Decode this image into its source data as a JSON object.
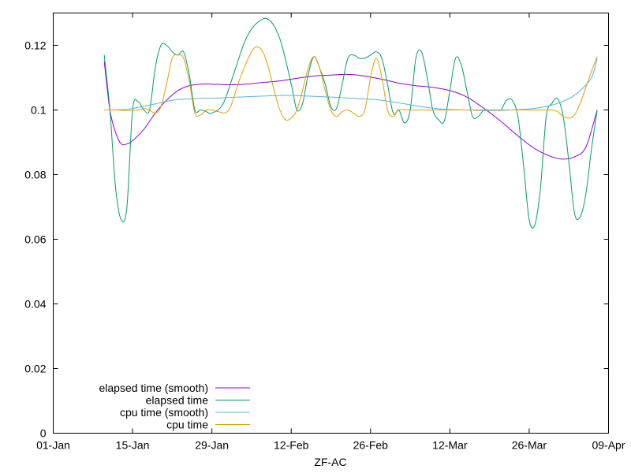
{
  "chart_data": {
    "type": "line",
    "title": "",
    "xlabel": "ZF-AC",
    "ylabel": "",
    "x_tick_labels": [
      "01-Jan",
      "15-Jan",
      "29-Jan",
      "12-Feb",
      "26-Feb",
      "12-Mar",
      "26-Mar",
      "09-Apr"
    ],
    "y_tick_labels": [
      "0",
      "0.02",
      "0.04",
      "0.06",
      "0.08",
      "0.1",
      "0.12"
    ],
    "xlim": [
      "01-Jan",
      "09-Apr"
    ],
    "ylim": [
      0,
      0.13
    ],
    "grid": false,
    "legend_position": "bottom-left",
    "series": [
      {
        "name": "elapsed time (smooth)",
        "color": "#9400d3",
        "points": [
          [
            "10-Jan",
            0.115
          ],
          [
            "11-Jan",
            0.1
          ],
          [
            "12-Jan",
            0.093
          ],
          [
            "13-Jan",
            0.0895
          ],
          [
            "14-Jan",
            0.0895
          ],
          [
            "15-Jan",
            0.0905
          ],
          [
            "17-Jan",
            0.094
          ],
          [
            "19-Jan",
            0.099
          ],
          [
            "21-Jan",
            0.103
          ],
          [
            "23-Jan",
            0.106
          ],
          [
            "25-Jan",
            0.1075
          ],
          [
            "27-Jan",
            0.108
          ],
          [
            "29-Jan",
            0.108
          ],
          [
            "01-Feb",
            0.1078
          ],
          [
            "04-Feb",
            0.108
          ],
          [
            "07-Feb",
            0.1085
          ],
          [
            "10-Feb",
            0.109
          ],
          [
            "13-Feb",
            0.1098
          ],
          [
            "16-Feb",
            0.1105
          ],
          [
            "19-Feb",
            0.1108
          ],
          [
            "22-Feb",
            0.111
          ],
          [
            "25-Feb",
            0.1105
          ],
          [
            "28-Feb",
            0.1095
          ],
          [
            "03-Mar",
            0.1083
          ],
          [
            "06-Mar",
            0.1075
          ],
          [
            "09-Mar",
            0.107
          ],
          [
            "12-Mar",
            0.106
          ],
          [
            "15-Mar",
            0.104
          ],
          [
            "18-Mar",
            0.1005
          ],
          [
            "21-Mar",
            0.0965
          ],
          [
            "24-Mar",
            0.092
          ],
          [
            "27-Mar",
            0.088
          ],
          [
            "30-Mar",
            0.0855
          ],
          [
            "01-Apr",
            0.0848
          ],
          [
            "03-Apr",
            0.0855
          ],
          [
            "05-Apr",
            0.0885
          ],
          [
            "07-Apr",
            0.1
          ]
        ]
      },
      {
        "name": "elapsed time",
        "color": "#009e73",
        "points": [
          [
            "10-Jan",
            0.117
          ],
          [
            "11-Jan",
            0.1
          ],
          [
            "12-Jan",
            0.076
          ],
          [
            "13-Jan",
            0.066
          ],
          [
            "14-Jan",
            0.07
          ],
          [
            "15-Jan",
            0.1
          ],
          [
            "16-Jan",
            0.1025
          ],
          [
            "17-Jan",
            0.1
          ],
          [
            "18-Jan",
            0.1
          ],
          [
            "19-Jan",
            0.113
          ],
          [
            "20-Jan",
            0.12
          ],
          [
            "21-Jan",
            0.12
          ],
          [
            "22-Jan",
            0.118
          ],
          [
            "23-Jan",
            0.117
          ],
          [
            "24-Jan",
            0.118
          ],
          [
            "25-Jan",
            0.111
          ],
          [
            "26-Jan",
            0.1
          ],
          [
            "27-Jan",
            0.1
          ],
          [
            "28-Jan",
            0.0995
          ],
          [
            "29-Jan",
            0.099
          ],
          [
            "31-Jan",
            0.102
          ],
          [
            "02-Feb",
            0.112
          ],
          [
            "04-Feb",
            0.122
          ],
          [
            "06-Feb",
            0.127
          ],
          [
            "08-Feb",
            0.128
          ],
          [
            "10-Feb",
            0.122
          ],
          [
            "12-Feb",
            0.108
          ],
          [
            "13-Feb",
            0.1
          ],
          [
            "14-Feb",
            0.102
          ],
          [
            "15-Feb",
            0.111
          ],
          [
            "16-Feb",
            0.1165
          ],
          [
            "17-Feb",
            0.113
          ],
          [
            "18-Feb",
            0.108
          ],
          [
            "19-Feb",
            0.101
          ],
          [
            "20-Feb",
            0.1005
          ],
          [
            "21-Feb",
            0.108
          ],
          [
            "22-Feb",
            0.116
          ],
          [
            "23-Feb",
            0.117
          ],
          [
            "24-Feb",
            0.116
          ],
          [
            "25-Feb",
            0.116
          ],
          [
            "26-Feb",
            0.117
          ],
          [
            "27-Feb",
            0.118
          ],
          [
            "28-Feb",
            0.116
          ],
          [
            "01-Mar",
            0.108
          ],
          [
            "02-Mar",
            0.099
          ],
          [
            "03-Mar",
            0.1
          ],
          [
            "04-Mar",
            0.096
          ],
          [
            "05-Mar",
            0.1
          ],
          [
            "06-Mar",
            0.116
          ],
          [
            "07-Mar",
            0.118
          ],
          [
            "08-Mar",
            0.11
          ],
          [
            "09-Mar",
            0.1
          ],
          [
            "10-Mar",
            0.097
          ],
          [
            "11-Mar",
            0.0965
          ],
          [
            "12-Mar",
            0.106
          ],
          [
            "13-Mar",
            0.116
          ],
          [
            "14-Mar",
            0.114
          ],
          [
            "15-Mar",
            0.106
          ],
          [
            "16-Mar",
            0.098
          ],
          [
            "17-Mar",
            0.098
          ],
          [
            "18-Mar",
            0.1
          ],
          [
            "19-Mar",
            0.1
          ],
          [
            "20-Mar",
            0.1
          ],
          [
            "21-Mar",
            0.1
          ],
          [
            "22-Mar",
            0.103
          ],
          [
            "23-Mar",
            0.103
          ],
          [
            "24-Mar",
            0.098
          ],
          [
            "25-Mar",
            0.083
          ],
          [
            "26-Mar",
            0.066
          ],
          [
            "27-Mar",
            0.0645
          ],
          [
            "28-Mar",
            0.076
          ],
          [
            "29-Mar",
            0.098
          ],
          [
            "30-Mar",
            0.102
          ],
          [
            "31-Mar",
            0.1035
          ],
          [
            "01-Apr",
            0.098
          ],
          [
            "02-Apr",
            0.084
          ],
          [
            "03-Apr",
            0.068
          ],
          [
            "04-Apr",
            0.067
          ],
          [
            "05-Apr",
            0.074
          ],
          [
            "06-Apr",
            0.088
          ],
          [
            "07-Apr",
            0.1
          ]
        ]
      },
      {
        "name": "cpu time (smooth)",
        "color": "#56b4e9",
        "points": [
          [
            "10-Jan",
            0.1
          ],
          [
            "14-Jan",
            0.1002
          ],
          [
            "18-Jan",
            0.1015
          ],
          [
            "22-Jan",
            0.103
          ],
          [
            "26-Jan",
            0.1035
          ],
          [
            "30-Jan",
            0.1037
          ],
          [
            "03-Feb",
            0.104
          ],
          [
            "07-Feb",
            0.1043
          ],
          [
            "11-Feb",
            0.1045
          ],
          [
            "15-Feb",
            0.1043
          ],
          [
            "19-Feb",
            0.104
          ],
          [
            "23-Feb",
            0.1036
          ],
          [
            "27-Feb",
            0.1032
          ],
          [
            "03-Mar",
            0.1022
          ],
          [
            "07-Mar",
            0.101
          ],
          [
            "11-Mar",
            0.1002
          ],
          [
            "15-Mar",
            0.1
          ],
          [
            "19-Mar",
            0.0998
          ],
          [
            "23-Mar",
            0.1
          ],
          [
            "27-Mar",
            0.1005
          ],
          [
            "30-Mar",
            0.1015
          ],
          [
            "02-Apr",
            0.1035
          ],
          [
            "04-Apr",
            0.106
          ],
          [
            "06-Apr",
            0.11
          ],
          [
            "07-Apr",
            0.116
          ]
        ]
      },
      {
        "name": "cpu time",
        "color": "#e69f00",
        "points": [
          [
            "10-Jan",
            0.1
          ],
          [
            "12-Jan",
            0.1
          ],
          [
            "14-Jan",
            0.0998
          ],
          [
            "16-Jan",
            0.1
          ],
          [
            "17-Jan",
            0.1005
          ],
          [
            "18-Jan",
            0.1
          ],
          [
            "19-Jan",
            0.099
          ],
          [
            "20-Jan",
            0.101
          ],
          [
            "21-Jan",
            0.108
          ],
          [
            "22-Jan",
            0.116
          ],
          [
            "23-Jan",
            0.117
          ],
          [
            "24-Jan",
            0.116
          ],
          [
            "25-Jan",
            0.109
          ],
          [
            "26-Jan",
            0.099
          ],
          [
            "27-Jan",
            0.0985
          ],
          [
            "28-Jan",
            0.1
          ],
          [
            "29-Jan",
            0.1
          ],
          [
            "30-Jan",
            0.0995
          ],
          [
            "01-Feb",
            0.1
          ],
          [
            "03-Feb",
            0.11
          ],
          [
            "05-Feb",
            0.118
          ],
          [
            "06-Feb",
            0.1195
          ],
          [
            "07-Feb",
            0.118
          ],
          [
            "08-Feb",
            0.113
          ],
          [
            "09-Feb",
            0.106
          ],
          [
            "10-Feb",
            0.1
          ],
          [
            "11-Feb",
            0.097
          ],
          [
            "12-Feb",
            0.0975
          ],
          [
            "13-Feb",
            0.1
          ],
          [
            "14-Feb",
            0.106
          ],
          [
            "15-Feb",
            0.113
          ],
          [
            "16-Feb",
            0.1165
          ],
          [
            "17-Feb",
            0.113
          ],
          [
            "18-Feb",
            0.106
          ],
          [
            "19-Feb",
            0.1
          ],
          [
            "20-Feb",
            0.098
          ],
          [
            "21-Feb",
            0.0995
          ],
          [
            "22-Feb",
            0.1
          ],
          [
            "23-Feb",
            0.099
          ],
          [
            "24-Feb",
            0.098
          ],
          [
            "25-Feb",
            0.1
          ],
          [
            "26-Feb",
            0.11
          ],
          [
            "27-Feb",
            0.116
          ],
          [
            "28-Feb",
            0.11
          ],
          [
            "01-Mar",
            0.1
          ],
          [
            "02-Mar",
            0.098
          ],
          [
            "03-Mar",
            0.1
          ],
          [
            "05-Mar",
            0.1
          ],
          [
            "10-Mar",
            0.1
          ],
          [
            "15-Mar",
            0.1
          ],
          [
            "20-Mar",
            0.1
          ],
          [
            "25-Mar",
            0.1
          ],
          [
            "29-Mar",
            0.1
          ],
          [
            "30-Mar",
            0.1
          ],
          [
            "31-Mar",
            0.0995
          ],
          [
            "01-Apr",
            0.098
          ],
          [
            "02-Apr",
            0.0975
          ],
          [
            "03-Apr",
            0.0985
          ],
          [
            "04-Apr",
            0.102
          ],
          [
            "05-Apr",
            0.107
          ],
          [
            "06-Apr",
            0.112
          ],
          [
            "07-Apr",
            0.1165
          ]
        ]
      }
    ]
  }
}
